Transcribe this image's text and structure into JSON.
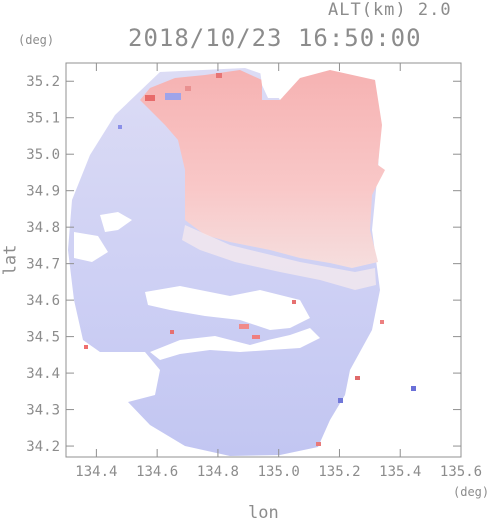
{
  "header": {
    "alt_label": "ALT(km) 2.0",
    "datetime": "2018/10/23 16:50:00"
  },
  "axes": {
    "y_unit": "(deg)",
    "x_unit": "(deg)",
    "xlabel": "lon",
    "ylabel": "lat",
    "x_ticks": [
      "134.4",
      "134.6",
      "134.8",
      "135.0",
      "135.2",
      "135.4",
      "135.6"
    ],
    "y_ticks": [
      "35.2",
      "35.1",
      "35.0",
      "34.9",
      "34.8",
      "34.7",
      "34.6",
      "34.5",
      "34.4",
      "34.3",
      "34.2"
    ],
    "xlim": [
      134.3,
      135.6
    ],
    "ylim": [
      34.17,
      35.25
    ]
  },
  "colors": {
    "positive": "#f7b4b4",
    "negative": "#c4c8f2",
    "axis": "#909090"
  }
}
